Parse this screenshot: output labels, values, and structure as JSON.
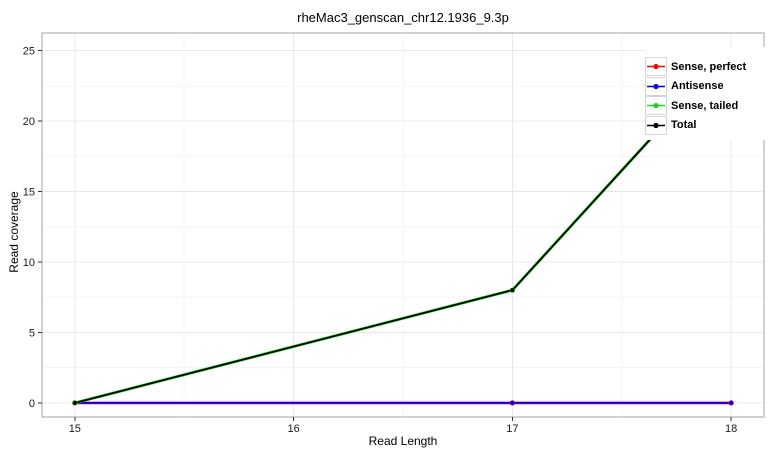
{
  "title": "rheMac3_genscan_chr12.1936_9.3p",
  "axes": {
    "xlabel": "Read Length",
    "ylabel": "Read coverage",
    "x_ticks": [
      15,
      16,
      17,
      18
    ],
    "y_ticks": [
      0,
      5,
      10,
      15,
      20,
      25
    ],
    "x_minor": [
      15.5,
      16.5,
      17.5
    ],
    "y_minor": [
      2.5,
      7.5,
      12.5,
      17.5,
      22.5
    ],
    "xlim": [
      14.85,
      18.15
    ],
    "ylim": [
      -1.0,
      26.25
    ]
  },
  "chart_data": {
    "type": "line",
    "title": "rheMac3_genscan_chr12.1936_9.3p",
    "xlabel": "Read Length",
    "ylabel": "Read coverage",
    "x": [
      15,
      17,
      18
    ],
    "series": [
      {
        "name": "Sense, perfect",
        "color": "#FF0000",
        "values": [
          0,
          0,
          0
        ]
      },
      {
        "name": "Antisense",
        "color": "#0000FF",
        "values": [
          0,
          0,
          0
        ]
      },
      {
        "name": "Sense, tailed",
        "color": "#22CC22",
        "values": [
          0,
          8,
          25
        ]
      },
      {
        "name": "Total",
        "color": "#000000",
        "values": [
          0,
          8,
          25
        ]
      }
    ],
    "xrange": [
      15,
      18
    ],
    "ylim": [
      0,
      25
    ],
    "grid": true,
    "legend_position": "top-right-inside"
  },
  "colors": {
    "background": "#ffffff",
    "panel_border": "#a6a6a6",
    "grid_major": "#e8e8e8",
    "grid_minor": "#f5f5f5",
    "tick_mark": "#333333",
    "tick_label": "#1a1a1a"
  }
}
